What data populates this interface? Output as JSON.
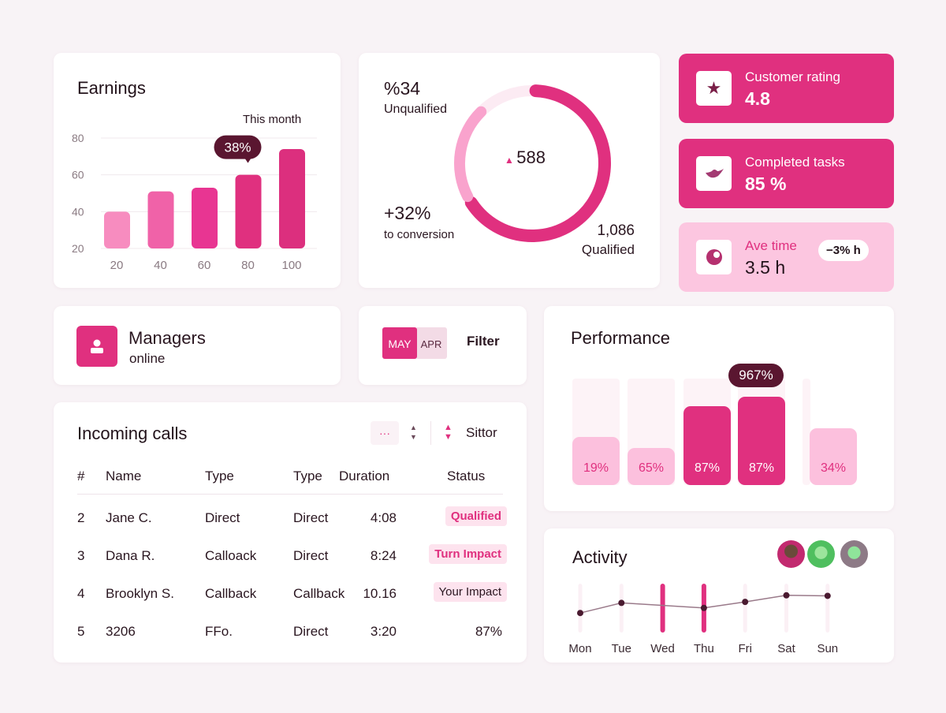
{
  "earnings": {
    "title": "Earnings",
    "subtitle": "This month",
    "tooltip": "38%",
    "chart_data": {
      "type": "bar",
      "categories": [
        "20",
        "40",
        "60",
        "80",
        "100"
      ],
      "values": [
        40,
        51,
        53,
        60,
        74
      ],
      "yticks": [
        "80",
        "60",
        "40",
        "20"
      ],
      "ylim": [
        20,
        80
      ],
      "grid": true,
      "highlight_index": 3,
      "colors": [
        "#f78cbf",
        "#f062a8",
        "#e83592",
        "#e0307f",
        "#dc2f7e"
      ]
    }
  },
  "conversion": {
    "unqualified_value": "%34",
    "unqualified_label": "Unqualified",
    "center_value": "588",
    "delta_value": "+32%",
    "delta_label": "to conversion",
    "qualified_value": "1,086",
    "qualified_label": "Qualified",
    "chart_data": {
      "type": "pie",
      "variant": "donut",
      "segments": [
        {
          "label": "Qualified",
          "value": 66,
          "color": "#e0307f"
        },
        {
          "label": "Unqualified",
          "value": 34,
          "color": "#f9a3cd"
        }
      ]
    }
  },
  "stats": [
    {
      "label": "Customer rating",
      "value": "4.8",
      "icon": "star-icon"
    },
    {
      "label": "Completed tasks",
      "value": "85 %",
      "icon": "bird-icon"
    },
    {
      "label": "Ave time",
      "value": "3.5 h",
      "badge": "−3% h",
      "icon": "moon-icon"
    }
  ],
  "managers": {
    "title": "Managers",
    "subtitle": "online",
    "icon": "user-icon"
  },
  "filter": {
    "tag1": "MAY",
    "tag2": "APR",
    "label": "Filter"
  },
  "performance": {
    "title": "Performance",
    "tooltip": "967%",
    "chart_data": {
      "type": "bar",
      "labels": [
        "19%",
        "65%",
        "87%",
        "87%",
        "34%"
      ],
      "fill_levels": [
        0.45,
        0.35,
        0.74,
        0.83,
        0.53
      ],
      "highlight_index": 3
    }
  },
  "calls": {
    "title": "Incoming calls",
    "more": "···",
    "sort_label": "Sittor",
    "columns": [
      "#",
      "Name",
      "Type",
      "Type",
      "Duration",
      "Status"
    ],
    "rows": [
      [
        "2",
        "Jane C.",
        "Direct",
        "Direct",
        "4:08",
        "Qualified"
      ],
      [
        "3",
        "Dana R.",
        "Calloack",
        "Direct",
        "8:24",
        "Turn Impact"
      ],
      [
        "4",
        "Brooklyn S.",
        "Callback",
        "Callback",
        "10.16",
        "Your Impact"
      ],
      [
        "5",
        "3206",
        "FFo.",
        "Direct",
        "3:20",
        "87%"
      ]
    ]
  },
  "activity": {
    "title": "Activity",
    "chart_data": {
      "type": "line",
      "categories": [
        "Mon",
        "Tue",
        "Wed",
        "Thu",
        "Fri",
        "Sat",
        "Sun"
      ],
      "values": [
        2,
        4,
        null,
        3,
        4.2,
        5.5,
        5.4
      ],
      "highlighted": [
        "Wed",
        "Thu"
      ]
    }
  }
}
